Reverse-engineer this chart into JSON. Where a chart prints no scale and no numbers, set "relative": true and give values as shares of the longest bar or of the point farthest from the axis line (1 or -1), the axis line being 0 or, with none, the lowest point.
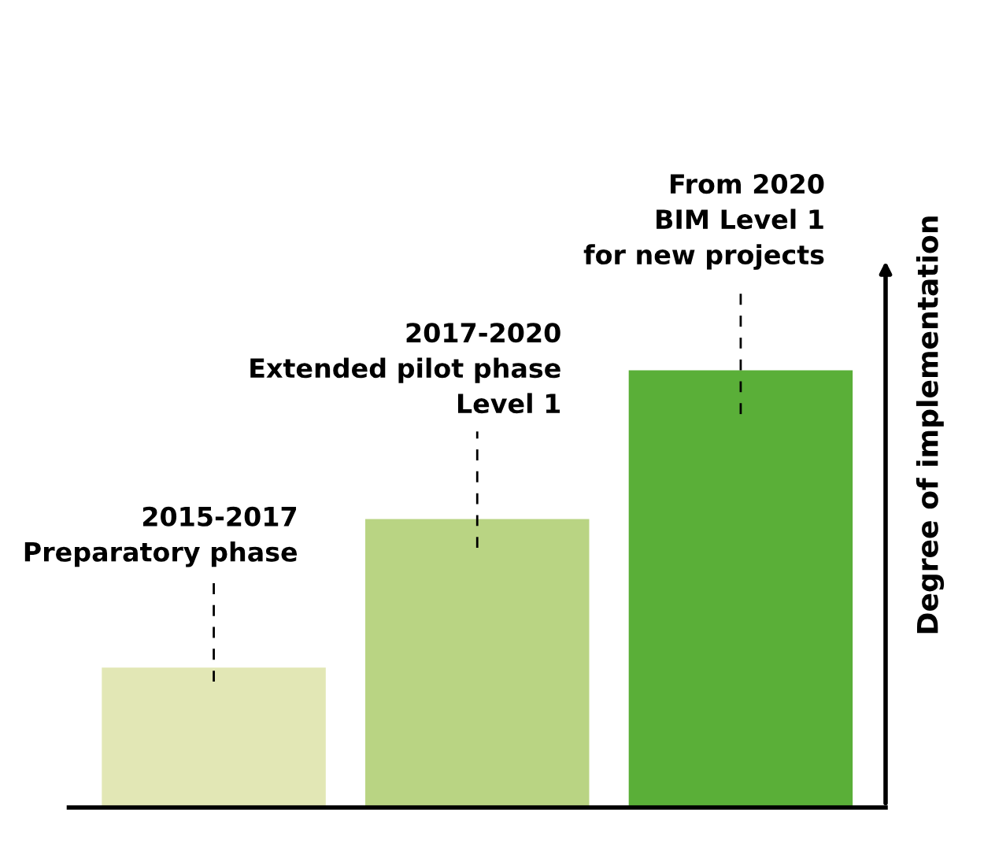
{
  "chart_data": {
    "type": "bar",
    "relative": true,
    "categories": [
      null,
      null,
      null
    ],
    "annotations": [
      "2015-2017\nPreparatory phase",
      "2017-2020\nExtended pilot phase\nLevel 1",
      "From 2020\nBIM Level 1\nfor new projects"
    ],
    "values": [
      0.32,
      0.66,
      1
    ],
    "colors": [
      "#e2e7b5",
      "#b9d483",
      "#5aaf38"
    ],
    "ylabel": "Degree of implementation",
    "legend": false
  }
}
